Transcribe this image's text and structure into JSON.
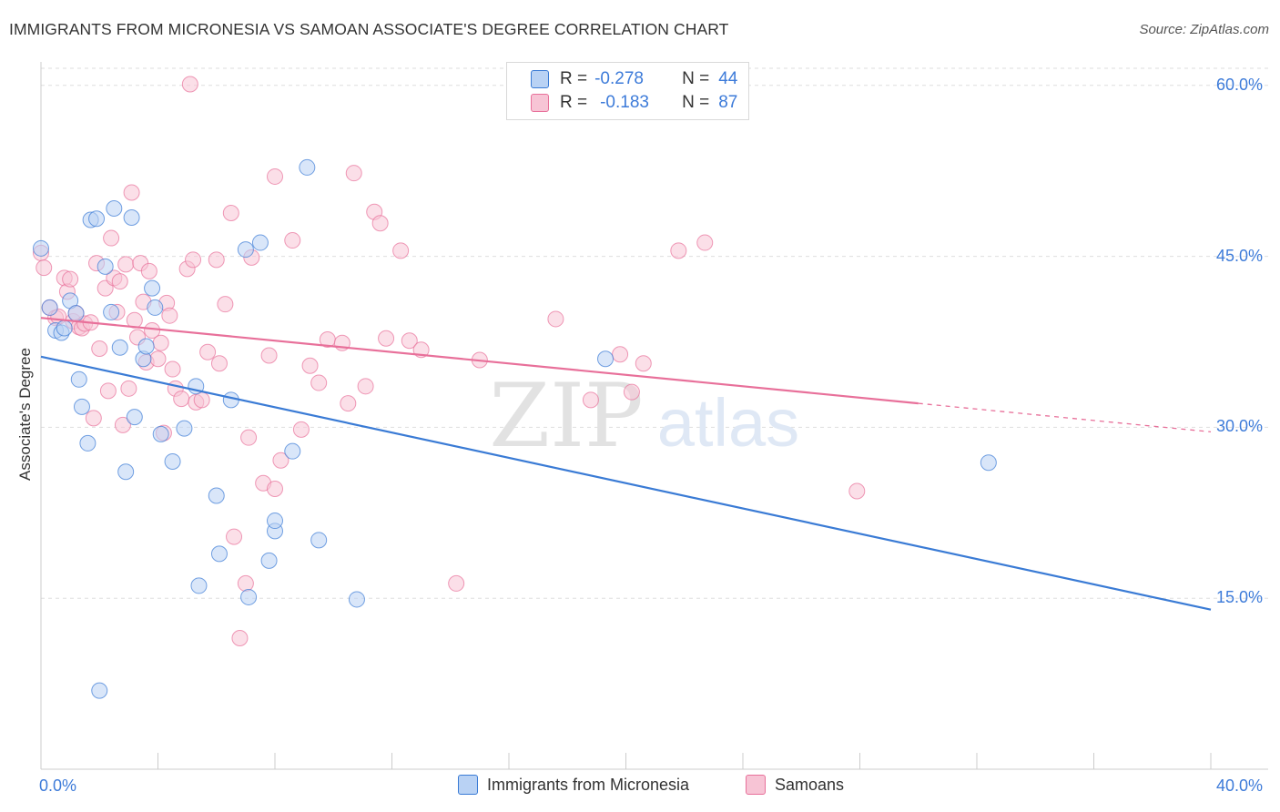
{
  "title": "IMMIGRANTS FROM MICRONESIA VS SAMOAN ASSOCIATE'S DEGREE CORRELATION CHART",
  "source": "Source: ZipAtlas.com",
  "watermark": {
    "zip": "ZIP",
    "atlas": "atlas"
  },
  "colors": {
    "blue": "#3a7bd5",
    "blue_fill": "#b9d2f4",
    "pink": "#e8709a",
    "pink_fill": "#f7c4d5",
    "value_text": "#3d7bd9"
  },
  "legend": {
    "rows": [
      {
        "r_label": "R =",
        "r_value": "-0.278",
        "n_label": "N =",
        "n_value": "44"
      },
      {
        "r_label": "R =",
        "r_value": "-0.183",
        "n_label": "N =",
        "n_value": "87"
      }
    ]
  },
  "chart_data": {
    "type": "scatter",
    "title": "IMMIGRANTS FROM MICRONESIA VS SAMOAN ASSOCIATE'S DEGREE CORRELATION CHART",
    "xlabel": "",
    "ylabel": "Associate's Degree",
    "xlim": [
      0,
      40
    ],
    "ylim": [
      0,
      61.5
    ],
    "x_tick_labels": [
      "0.0%",
      "40.0%"
    ],
    "y_ticks": [
      15,
      30,
      45,
      60
    ],
    "y_tick_labels": [
      "15.0%",
      "30.0%",
      "45.0%",
      "60.0%"
    ],
    "grid": true,
    "series": [
      {
        "name": "Immigrants from Micronesia",
        "color": "#3a7bd5",
        "R": -0.278,
        "N": 44,
        "trend": {
          "x": [
            0,
            40
          ],
          "y": [
            36.2,
            14.0
          ],
          "dashed_from": null
        },
        "points": [
          [
            0.0,
            45.7
          ],
          [
            0.3,
            40.5
          ],
          [
            0.5,
            38.5
          ],
          [
            0.7,
            38.3
          ],
          [
            0.8,
            38.7
          ],
          [
            1.0,
            41.1
          ],
          [
            1.3,
            34.2
          ],
          [
            1.4,
            31.8
          ],
          [
            1.6,
            28.6
          ],
          [
            1.7,
            48.2
          ],
          [
            1.9,
            48.3
          ],
          [
            2.2,
            44.1
          ],
          [
            2.4,
            40.1
          ],
          [
            2.5,
            49.2
          ],
          [
            2.7,
            37.0
          ],
          [
            2.9,
            26.1
          ],
          [
            3.1,
            48.4
          ],
          [
            3.2,
            30.9
          ],
          [
            3.5,
            36.0
          ],
          [
            3.6,
            37.1
          ],
          [
            3.8,
            42.2
          ],
          [
            3.9,
            40.5
          ],
          [
            4.1,
            29.4
          ],
          [
            4.5,
            27.0
          ],
          [
            4.9,
            29.9
          ],
          [
            5.3,
            33.6
          ],
          [
            5.4,
            16.1
          ],
          [
            6.1,
            18.9
          ],
          [
            6.0,
            24.0
          ],
          [
            6.5,
            32.4
          ],
          [
            7.0,
            45.6
          ],
          [
            7.1,
            15.1
          ],
          [
            7.5,
            46.2
          ],
          [
            7.8,
            18.3
          ],
          [
            8.0,
            20.9
          ],
          [
            8.0,
            21.8
          ],
          [
            8.6,
            27.9
          ],
          [
            9.1,
            52.8
          ],
          [
            9.5,
            20.1
          ],
          [
            10.8,
            14.9
          ],
          [
            2.0,
            6.9
          ],
          [
            19.3,
            36.0
          ],
          [
            32.4,
            26.9
          ],
          [
            1.2,
            40.0
          ]
        ]
      },
      {
        "name": "Samoans",
        "color": "#e8709a",
        "R": -0.183,
        "N": 87,
        "trend": {
          "x": [
            0,
            40
          ],
          "y": [
            39.6,
            29.6
          ],
          "dashed_from": 30.0
        },
        "points": [
          [
            0.0,
            45.3
          ],
          [
            0.1,
            44.0
          ],
          [
            0.3,
            40.5
          ],
          [
            0.5,
            39.6
          ],
          [
            0.6,
            39.7
          ],
          [
            0.8,
            43.1
          ],
          [
            0.9,
            41.9
          ],
          [
            1.0,
            43.0
          ],
          [
            1.1,
            39.3
          ],
          [
            1.2,
            40.0
          ],
          [
            1.3,
            38.8
          ],
          [
            1.4,
            38.7
          ],
          [
            1.5,
            39.1
          ],
          [
            1.7,
            39.2
          ],
          [
            1.8,
            30.8
          ],
          [
            1.9,
            44.4
          ],
          [
            2.0,
            36.9
          ],
          [
            2.2,
            42.2
          ],
          [
            2.3,
            33.2
          ],
          [
            2.4,
            46.6
          ],
          [
            2.5,
            43.1
          ],
          [
            2.6,
            40.1
          ],
          [
            2.7,
            42.8
          ],
          [
            2.8,
            30.2
          ],
          [
            2.9,
            44.3
          ],
          [
            3.0,
            33.4
          ],
          [
            3.1,
            50.6
          ],
          [
            3.2,
            39.4
          ],
          [
            3.3,
            37.9
          ],
          [
            3.4,
            44.4
          ],
          [
            3.5,
            41.0
          ],
          [
            3.6,
            35.7
          ],
          [
            3.7,
            43.7
          ],
          [
            3.8,
            38.5
          ],
          [
            4.0,
            36.0
          ],
          [
            4.1,
            37.4
          ],
          [
            4.2,
            29.5
          ],
          [
            4.3,
            40.9
          ],
          [
            4.4,
            39.8
          ],
          [
            4.5,
            35.1
          ],
          [
            4.6,
            33.4
          ],
          [
            4.8,
            32.5
          ],
          [
            5.0,
            43.9
          ],
          [
            5.1,
            60.1
          ],
          [
            5.2,
            44.7
          ],
          [
            5.3,
            32.2
          ],
          [
            5.5,
            32.4
          ],
          [
            5.7,
            36.6
          ],
          [
            6.0,
            44.7
          ],
          [
            6.1,
            35.6
          ],
          [
            6.3,
            40.8
          ],
          [
            6.5,
            48.8
          ],
          [
            6.6,
            20.4
          ],
          [
            6.8,
            11.5
          ],
          [
            7.0,
            16.3
          ],
          [
            7.1,
            29.1
          ],
          [
            7.2,
            44.9
          ],
          [
            7.6,
            25.1
          ],
          [
            7.8,
            36.3
          ],
          [
            8.0,
            52.0
          ],
          [
            8.0,
            24.6
          ],
          [
            8.2,
            27.1
          ],
          [
            8.6,
            46.4
          ],
          [
            8.9,
            29.8
          ],
          [
            9.2,
            35.4
          ],
          [
            9.5,
            33.9
          ],
          [
            9.8,
            37.7
          ],
          [
            10.3,
            37.4
          ],
          [
            10.5,
            32.1
          ],
          [
            10.7,
            52.3
          ],
          [
            11.1,
            33.6
          ],
          [
            11.4,
            48.9
          ],
          [
            11.6,
            47.9
          ],
          [
            11.8,
            37.8
          ],
          [
            12.3,
            45.5
          ],
          [
            12.6,
            37.6
          ],
          [
            13.0,
            36.8
          ],
          [
            14.2,
            16.3
          ],
          [
            15.0,
            35.9
          ],
          [
            17.6,
            39.5
          ],
          [
            18.8,
            32.4
          ],
          [
            19.8,
            36.4
          ],
          [
            20.2,
            33.1
          ],
          [
            20.6,
            35.6
          ],
          [
            21.8,
            45.5
          ],
          [
            22.7,
            46.2
          ],
          [
            27.9,
            24.4
          ]
        ]
      }
    ]
  },
  "bottom_legend": [
    "Immigrants from Micronesia",
    "Samoans"
  ]
}
